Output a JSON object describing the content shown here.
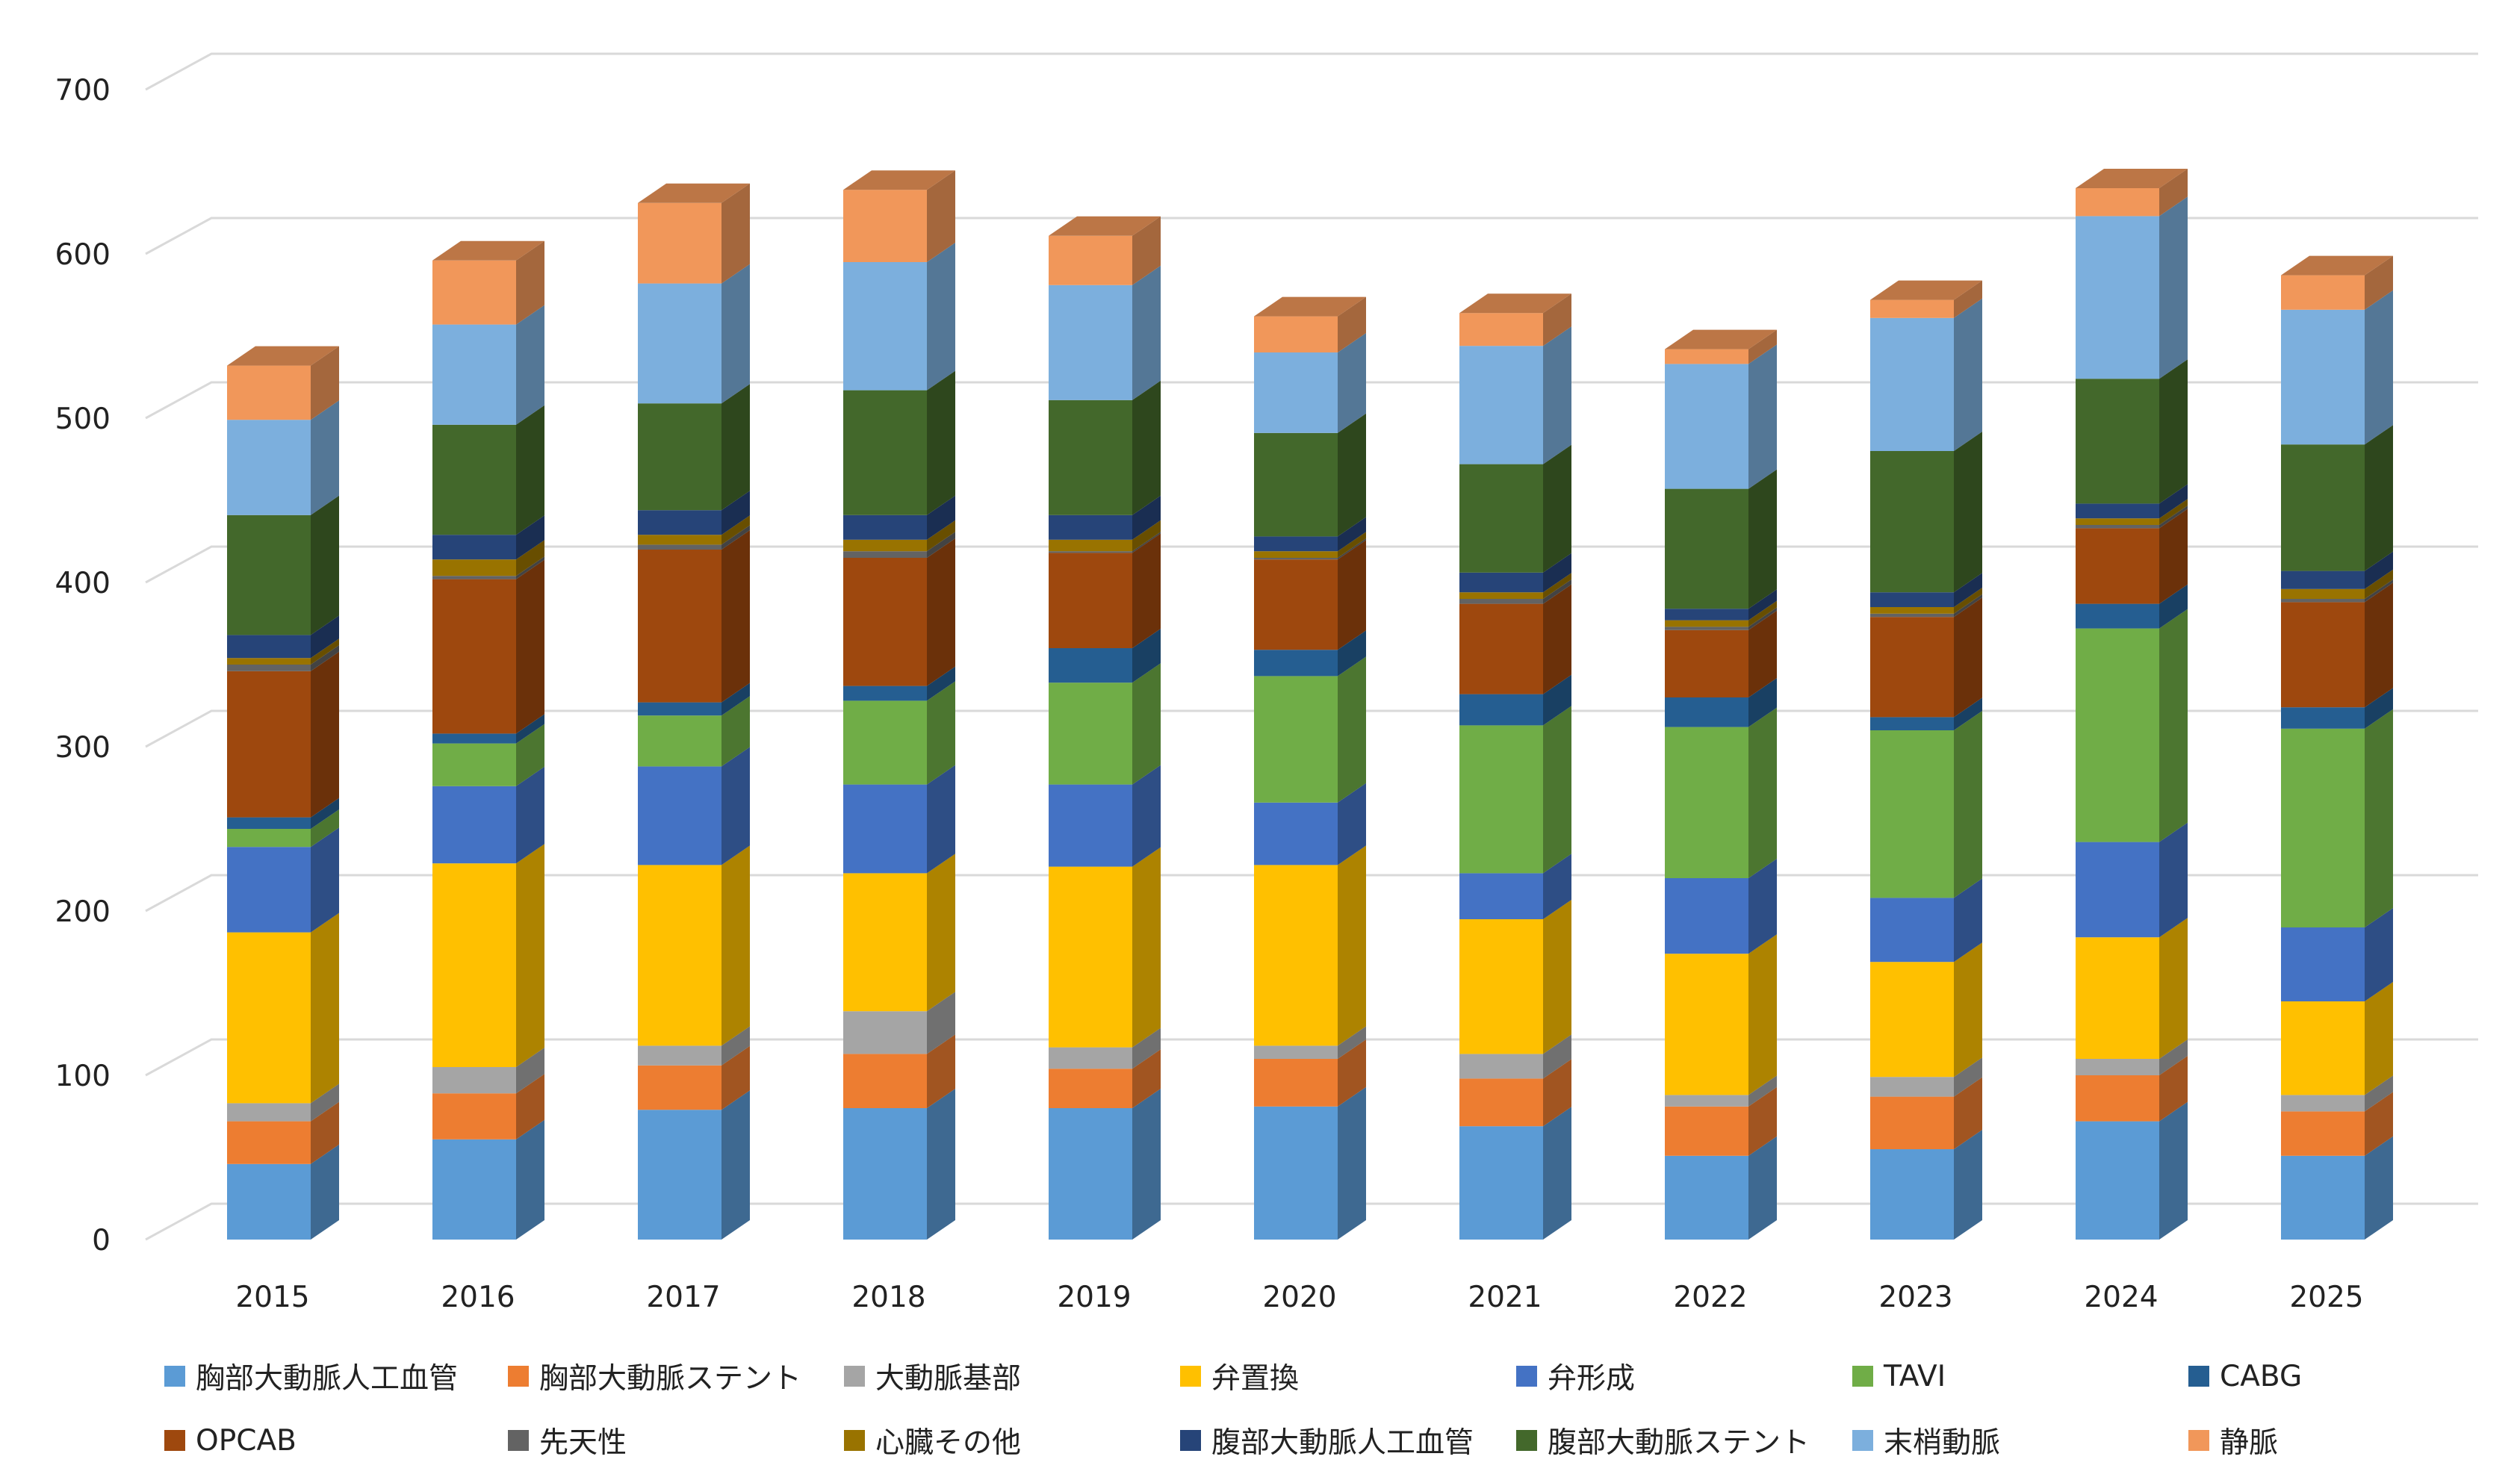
{
  "chart_data": {
    "type": "bar",
    "stacked": true,
    "style": "3d-column",
    "categories": [
      "2015",
      "2016",
      "2017",
      "2018",
      "2019",
      "2020",
      "2021",
      "2022",
      "2023",
      "2024",
      "2025"
    ],
    "ylim": [
      0,
      700
    ],
    "yticks": [
      "0",
      "100",
      "200",
      "300",
      "400",
      "500",
      "600",
      "700"
    ],
    "grid": true,
    "legend_position": "bottom",
    "series": [
      {
        "name": "胸部大動脈人工血管",
        "color": "#5b9bd5",
        "values": [
          46,
          61,
          79,
          80,
          80,
          81,
          69,
          51,
          55,
          72,
          51
        ]
      },
      {
        "name": "胸部大動脈ステント",
        "color": "#ed7d31",
        "values": [
          26,
          28,
          27,
          33,
          24,
          29,
          29,
          30,
          32,
          28,
          27
        ]
      },
      {
        "name": "大動脈基部",
        "color": "#a5a5a5",
        "values": [
          11,
          16,
          12,
          26,
          13,
          8,
          15,
          7,
          12,
          10,
          10
        ]
      },
      {
        "name": "弁置換",
        "color": "#ffc000",
        "values": [
          104,
          124,
          110,
          84,
          110,
          110,
          82,
          86,
          70,
          74,
          57
        ]
      },
      {
        "name": "弁形成",
        "color": "#4472c4",
        "values": [
          52,
          47,
          60,
          54,
          50,
          38,
          28,
          46,
          39,
          58,
          45
        ]
      },
      {
        "name": "TAVI",
        "color": "#70ad47",
        "values": [
          11,
          26,
          31,
          51,
          62,
          77,
          90,
          92,
          102,
          130,
          121
        ]
      },
      {
        "name": "CABG",
        "color": "#255e91",
        "values": [
          7,
          6,
          8,
          9,
          21,
          16,
          19,
          18,
          8,
          15,
          13
        ]
      },
      {
        "name": "OPCAB",
        "color": "#9e480e",
        "values": [
          89,
          94,
          93,
          78,
          58,
          55,
          55,
          41,
          61,
          46,
          64
        ]
      },
      {
        "name": "先天性",
        "color": "#636363",
        "values": [
          4,
          2,
          3,
          4,
          1,
          1,
          3,
          2,
          2,
          2,
          2
        ]
      },
      {
        "name": "心臓その他",
        "color": "#997300",
        "values": [
          4,
          10,
          6,
          7,
          7,
          4,
          4,
          4,
          4,
          4,
          6
        ]
      },
      {
        "name": "腹部大動脈人工血管",
        "color": "#264478",
        "values": [
          14,
          15,
          15,
          15,
          15,
          9,
          12,
          7,
          9,
          9,
          11
        ]
      },
      {
        "name": "腹部大動脈ステント",
        "color": "#43682b",
        "values": [
          73,
          67,
          65,
          76,
          70,
          63,
          66,
          73,
          86,
          76,
          77
        ]
      },
      {
        "name": "末梢動脈",
        "color": "#7cafdd",
        "values": [
          58,
          61,
          73,
          78,
          70,
          49,
          72,
          76,
          81,
          99,
          82
        ]
      },
      {
        "name": "静脈",
        "color": "#f1975a",
        "values": [
          33,
          39,
          49,
          44,
          30,
          22,
          20,
          9,
          11,
          17,
          21
        ]
      }
    ]
  }
}
